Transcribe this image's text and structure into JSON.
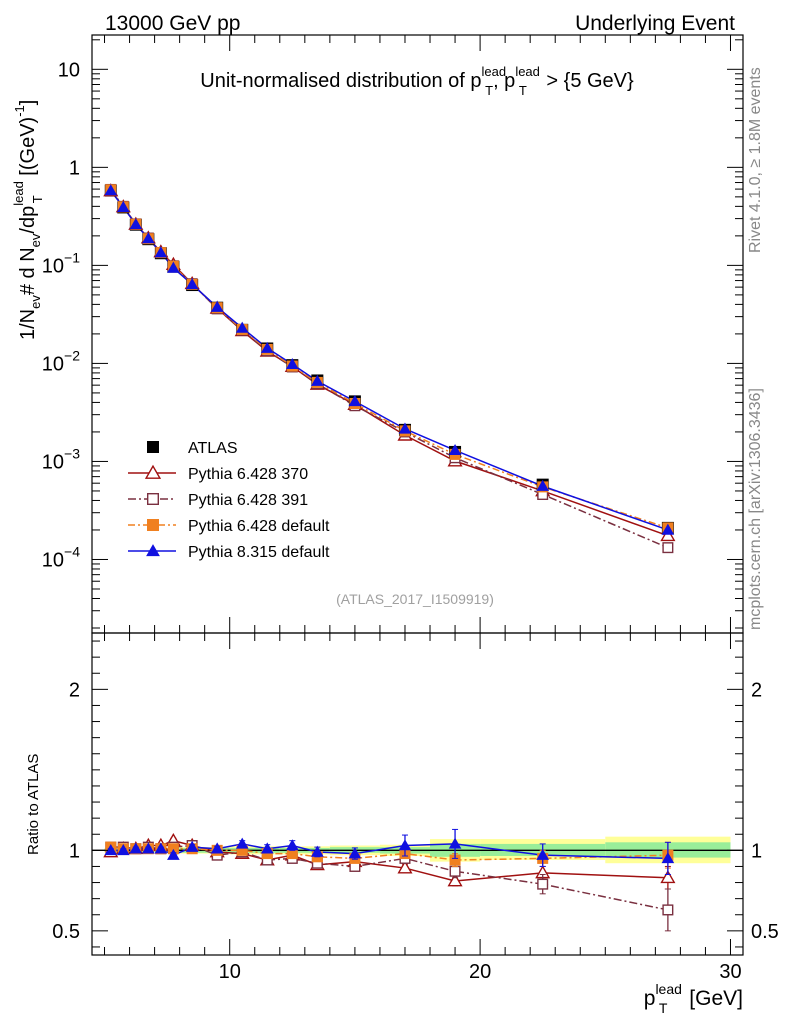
{
  "header": {
    "left": "13000 GeV pp",
    "right": "Underlying Event"
  },
  "side_labels": {
    "rivet": "Rivet 4.1.0, ≥ 1.8M events",
    "mcplots": "mcplots.cern.ch [arXiv:1306.3436]"
  },
  "chart_data": [
    {
      "type": "line",
      "panel": "main",
      "yscale": "log",
      "title_main": "Unit-normalised distribution of p",
      "title_sup": "lead",
      "title_sub": "T",
      "title_mid": ", p",
      "title_tail": " > {5 GeV}",
      "ylabel": "1/N_ev # d N_ev/dp_T^lead [(GeV)^-1]",
      "ylabel_parts": {
        "a": "1/N",
        "b": "ev",
        "c": "# d N",
        "d": "ev",
        "e": "/dp",
        "f": "lead",
        "g": "T",
        "h": " [(GeV)",
        "i": "-1",
        "j": "]"
      },
      "watermark": "(ATLAS_2017_I1509919)",
      "xlim": [
        4.5,
        30.5
      ],
      "ylim_log10": [
        -4.75,
        1.35
      ],
      "y_ticks": [
        {
          "exp": -4,
          "label_base": "10",
          "label_exp": "−4"
        },
        {
          "exp": -3,
          "label_base": "10",
          "label_exp": "−3"
        },
        {
          "exp": -2,
          "label_base": "10",
          "label_exp": "−2"
        },
        {
          "exp": -1,
          "label_base": "10",
          "label_exp": "−1"
        },
        {
          "exp": 0,
          "label_base": "1",
          "label_exp": ""
        },
        {
          "exp": 1,
          "label_base": "10",
          "label_exp": ""
        }
      ],
      "x": [
        5.25,
        5.75,
        6.25,
        6.75,
        7.25,
        7.75,
        8.5,
        9.5,
        10.5,
        11.5,
        12.5,
        13.5,
        15.0,
        17.0,
        19.0,
        22.5,
        27.5
      ],
      "series": [
        {
          "name": "ATLAS",
          "key": "atlas",
          "color": "#000000",
          "marker": "square-filled",
          "dash": "none",
          "values": [
            0.58,
            0.39,
            0.26,
            0.185,
            0.133,
            0.097,
            0.063,
            0.037,
            0.022,
            0.0142,
            0.0096,
            0.0067,
            0.0041,
            0.0021,
            0.00125,
            0.00058,
            0.00021
          ]
        },
        {
          "name": "Pythia 6.428 370",
          "key": "p370",
          "color": "#a01010",
          "marker": "triangle-open",
          "dash": "none",
          "values": [
            0.575,
            0.395,
            0.262,
            0.19,
            0.137,
            0.102,
            0.065,
            0.0365,
            0.0215,
            0.0133,
            0.0093,
            0.0061,
            0.0038,
            0.00185,
            0.00101,
            0.0005,
            0.000175
          ]
        },
        {
          "name": "Pythia 6.428 391",
          "key": "p391",
          "color": "#7a3040",
          "marker": "square-open",
          "dash": "8,3,2,3",
          "values": [
            0.595,
            0.4,
            0.265,
            0.19,
            0.135,
            0.099,
            0.065,
            0.036,
            0.0218,
            0.0134,
            0.0092,
            0.0062,
            0.0037,
            0.002,
            0.00109,
            0.00046,
            0.000132
          ]
        },
        {
          "name": "Pythia 6.428 default",
          "key": "p6def",
          "color": "#f08020",
          "marker": "square-filled",
          "dash": "7,3,2,3",
          "values": [
            0.59,
            0.395,
            0.263,
            0.187,
            0.135,
            0.098,
            0.064,
            0.037,
            0.0222,
            0.0139,
            0.0094,
            0.0064,
            0.0039,
            0.00205,
            0.00118,
            0.00055,
            0.00021
          ]
        },
        {
          "name": "Pythia 8.315 default",
          "key": "p8def",
          "color": "#1010e0",
          "marker": "triangle-filled",
          "dash": "none",
          "values": [
            0.58,
            0.392,
            0.262,
            0.188,
            0.135,
            0.094,
            0.064,
            0.0375,
            0.023,
            0.0143,
            0.0098,
            0.0066,
            0.0041,
            0.00215,
            0.0013,
            0.00056,
            0.0002
          ]
        }
      ]
    },
    {
      "type": "line",
      "panel": "ratio",
      "ylabel": "Ratio to ATLAS",
      "xlabel_base": "p",
      "xlabel_sup": "lead",
      "xlabel_sub": "T",
      "xlabel_unit": " [GeV]",
      "xlim": [
        4.5,
        30.5
      ],
      "ylim": [
        0.35,
        2.35
      ],
      "x_ticks": [
        {
          "v": 10,
          "label": "10"
        },
        {
          "v": 20,
          "label": "20"
        },
        {
          "v": 30,
          "label": "30"
        }
      ],
      "y_ticks": [
        {
          "v": 0.5,
          "label": "0.5"
        },
        {
          "v": 1,
          "label": "1"
        },
        {
          "v": 2,
          "label": "2"
        }
      ],
      "x": [
        5.25,
        5.75,
        6.25,
        6.75,
        7.25,
        7.75,
        8.5,
        9.5,
        10.5,
        11.5,
        12.5,
        13.5,
        15.0,
        17.0,
        19.0,
        22.5,
        27.5
      ],
      "uncertainty_bands": [
        {
          "x0": 5.0,
          "x1": 6.0,
          "yellow": [
            0.985,
            1.015
          ],
          "green": [
            0.99,
            1.01
          ]
        },
        {
          "x0": 6.0,
          "x1": 8.0,
          "yellow": [
            0.985,
            1.015
          ],
          "green": [
            0.99,
            1.01
          ]
        },
        {
          "x0": 8.0,
          "x1": 10.0,
          "yellow": [
            0.98,
            1.02
          ],
          "green": [
            0.985,
            1.015
          ]
        },
        {
          "x0": 10.0,
          "x1": 12.0,
          "yellow": [
            0.975,
            1.025
          ],
          "green": [
            0.985,
            1.015
          ]
        },
        {
          "x0": 12.0,
          "x1": 14.0,
          "yellow": [
            0.975,
            1.025
          ],
          "green": [
            0.985,
            1.015
          ]
        },
        {
          "x0": 14.0,
          "x1": 16.0,
          "yellow": [
            0.97,
            1.03
          ],
          "green": [
            0.985,
            1.02
          ]
        },
        {
          "x0": 16.0,
          "x1": 18.0,
          "yellow": [
            0.965,
            1.035
          ],
          "green": [
            0.98,
            1.02
          ]
        },
        {
          "x0": 18.0,
          "x1": 20.0,
          "yellow": [
            0.93,
            1.07
          ],
          "green": [
            0.96,
            1.04
          ]
        },
        {
          "x0": 20.0,
          "x1": 25.0,
          "yellow": [
            0.94,
            1.07
          ],
          "green": [
            0.965,
            1.04
          ]
        },
        {
          "x0": 25.0,
          "x1": 30.0,
          "yellow": [
            0.92,
            1.085
          ],
          "green": [
            0.955,
            1.05
          ]
        }
      ],
      "series": [
        {
          "key": "p370",
          "color": "#a01010",
          "marker": "triangle-open",
          "dash": "none",
          "values": [
            0.99,
            1.01,
            1.01,
            1.03,
            1.03,
            1.06,
            1.03,
            0.99,
            0.98,
            0.94,
            0.97,
            0.91,
            0.93,
            0.89,
            0.81,
            0.86,
            0.83
          ],
          "errors": [
            0.01,
            0.01,
            0.01,
            0.01,
            0.01,
            0.015,
            0.015,
            0.015,
            0.015,
            0.02,
            0.02,
            0.025,
            0.02,
            0.025,
            0.03,
            0.04,
            0.07
          ]
        },
        {
          "key": "p391",
          "color": "#7a3040",
          "marker": "square-open",
          "dash": "8,3,2,3",
          "values": [
            1.02,
            1.02,
            1.01,
            1.02,
            1.01,
            1.02,
            1.03,
            0.97,
            0.99,
            0.94,
            0.95,
            0.92,
            0.9,
            0.95,
            0.87,
            0.79,
            0.63
          ],
          "errors": [
            0.01,
            0.01,
            0.01,
            0.01,
            0.01,
            0.015,
            0.015,
            0.015,
            0.015,
            0.02,
            0.02,
            0.025,
            0.025,
            0.03,
            0.04,
            0.06,
            0.13
          ]
        },
        {
          "key": "p6def",
          "color": "#f08020",
          "marker": "square-filled",
          "dash": "7,3,2,3",
          "values": [
            1.02,
            1.01,
            1.01,
            1.01,
            1.01,
            1.01,
            1.01,
            1.0,
            1.0,
            0.98,
            0.98,
            0.96,
            0.95,
            0.98,
            0.94,
            0.95,
            0.97
          ],
          "errors": [
            0.01,
            0.01,
            0.01,
            0.01,
            0.01,
            0.015,
            0.015,
            0.015,
            0.015,
            0.02,
            0.02,
            0.025,
            0.025,
            0.03,
            0.04,
            0.05,
            0.08
          ]
        },
        {
          "key": "p8def",
          "color": "#1010e0",
          "marker": "triangle-filled",
          "dash": "none",
          "values": [
            1.0,
            1.0,
            1.01,
            1.01,
            1.01,
            0.97,
            1.02,
            1.01,
            1.04,
            1.01,
            1.03,
            0.99,
            0.98,
            1.03,
            1.04,
            0.97,
            0.95
          ],
          "errors": [
            0.01,
            0.01,
            0.01,
            0.01,
            0.01,
            0.015,
            0.015,
            0.015,
            0.02,
            0.025,
            0.03,
            0.03,
            0.035,
            0.065,
            0.09,
            0.07,
            0.1
          ]
        }
      ]
    }
  ]
}
